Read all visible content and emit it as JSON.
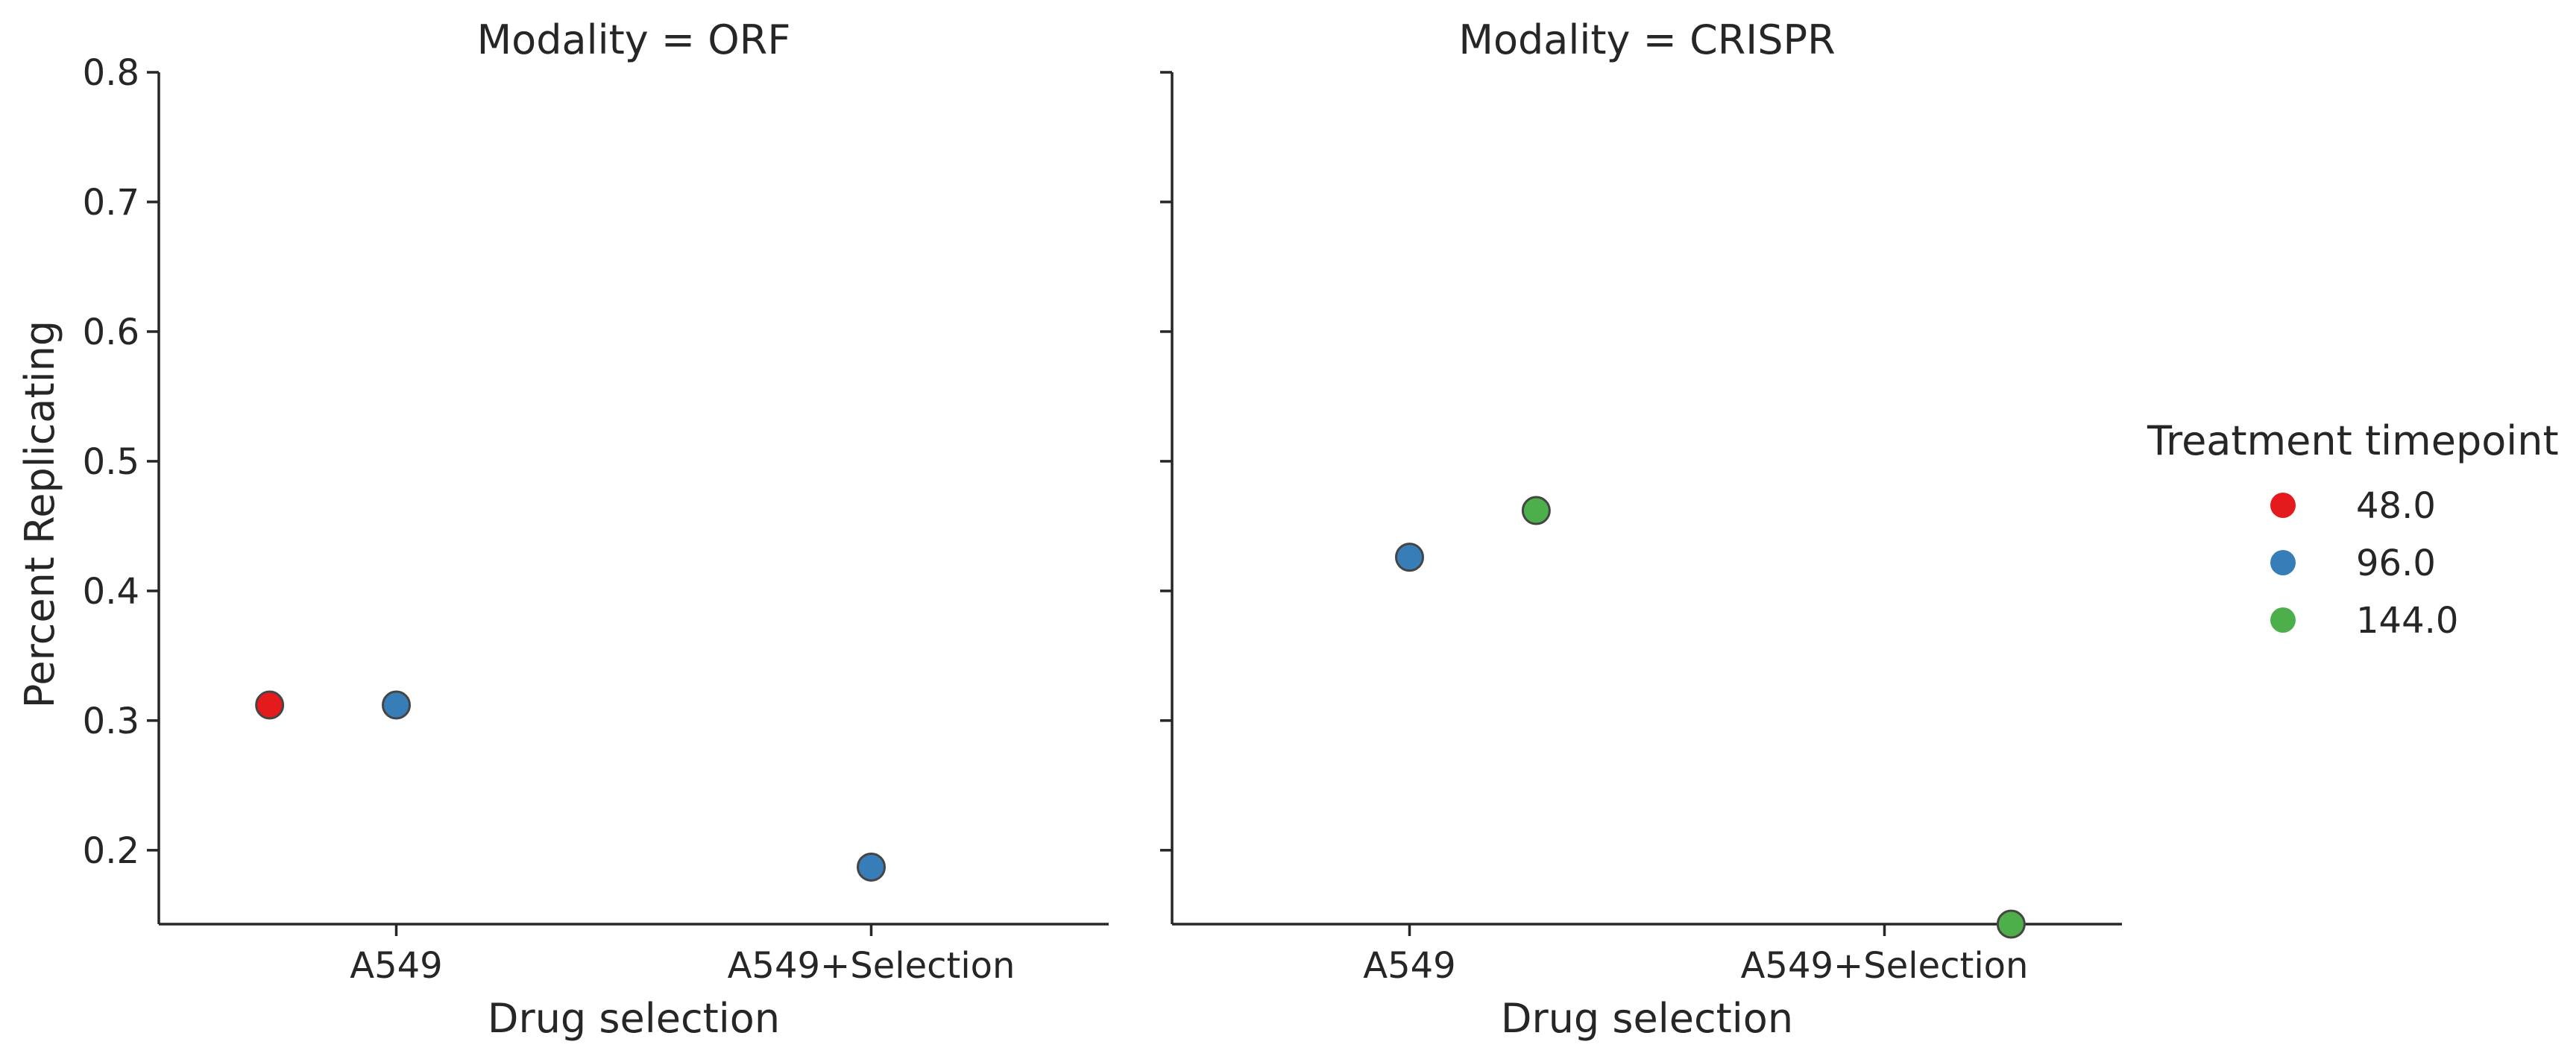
{
  "chart_data": {
    "type": "scatter",
    "ylabel": "Percent Replicating",
    "ylim": [
      0.143,
      0.8
    ],
    "yticks": [
      0.2,
      0.3,
      0.4,
      0.5,
      0.6,
      0.7,
      0.8
    ],
    "xlabel": "Drug selection",
    "categories": [
      "A549",
      "A549+Selection"
    ],
    "legend": {
      "title": "Treatment timepoint",
      "placement": "right",
      "entries": [
        {
          "label": "48.0",
          "color": "#e41a1c"
        },
        {
          "label": "96.0",
          "color": "#377eb8"
        },
        {
          "label": "144.0",
          "color": "#4daf4a"
        }
      ]
    },
    "hue_order": [
      "48.0",
      "96.0",
      "144.0"
    ],
    "panels": [
      {
        "title": "Modality = ORF",
        "points": [
          {
            "category": "A549",
            "hue": "48.0",
            "y": 0.312
          },
          {
            "category": "A549",
            "hue": "96.0",
            "y": 0.312
          },
          {
            "category": "A549+Selection",
            "hue": "96.0",
            "y": 0.187
          }
        ]
      },
      {
        "title": "Modality = CRISPR",
        "points": [
          {
            "category": "A549",
            "hue": "96.0",
            "y": 0.426
          },
          {
            "category": "A549",
            "hue": "144.0",
            "y": 0.462
          },
          {
            "category": "A549+Selection",
            "hue": "144.0",
            "y": 0.143
          }
        ]
      }
    ]
  }
}
